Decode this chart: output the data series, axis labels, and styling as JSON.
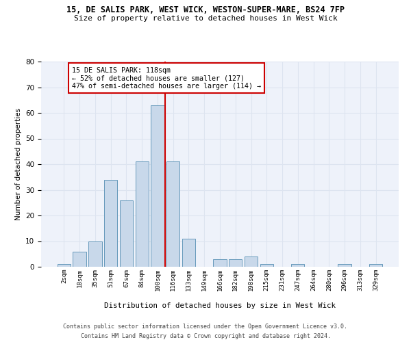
{
  "title_line1": "15, DE SALIS PARK, WEST WICK, WESTON-SUPER-MARE, BS24 7FP",
  "title_line2": "Size of property relative to detached houses in West Wick",
  "xlabel": "Distribution of detached houses by size in West Wick",
  "ylabel": "Number of detached properties",
  "bin_labels": [
    "2sqm",
    "18sqm",
    "35sqm",
    "51sqm",
    "67sqm",
    "84sqm",
    "100sqm",
    "116sqm",
    "133sqm",
    "149sqm",
    "166sqm",
    "182sqm",
    "198sqm",
    "215sqm",
    "231sqm",
    "247sqm",
    "264sqm",
    "280sqm",
    "296sqm",
    "313sqm",
    "329sqm"
  ],
  "bin_values": [
    1,
    6,
    10,
    34,
    26,
    41,
    63,
    41,
    11,
    0,
    3,
    3,
    4,
    1,
    0,
    1,
    0,
    0,
    1,
    0,
    1
  ],
  "bar_color": "#c8d8ea",
  "bar_edge_color": "#6699bb",
  "property_line_x": 6.5,
  "annotation_text": "15 DE SALIS PARK: 118sqm\n← 52% of detached houses are smaller (127)\n47% of semi-detached houses are larger (114) →",
  "annotation_box_color": "#ffffff",
  "annotation_box_edge": "#cc0000",
  "red_line_color": "#cc0000",
  "ylim": [
    0,
    80
  ],
  "yticks": [
    0,
    10,
    20,
    30,
    40,
    50,
    60,
    70,
    80
  ],
  "grid_color": "#dde4f0",
  "bg_color": "#eef2fa",
  "footer_line1": "Contains HM Land Registry data © Crown copyright and database right 2024.",
  "footer_line2": "Contains public sector information licensed under the Open Government Licence v3.0."
}
